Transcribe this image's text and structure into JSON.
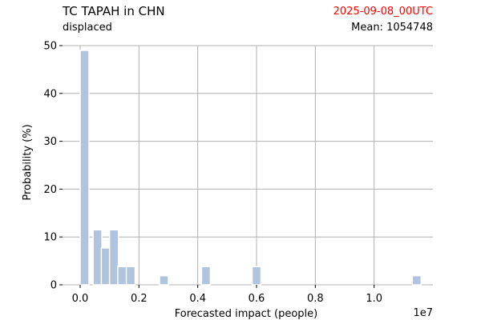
{
  "header": {
    "title": "TC TAPAH in CHN",
    "subtitle": "displaced",
    "date": "2025-09-08_00UTC",
    "mean_label": "Mean:",
    "mean_value": "1054748"
  },
  "colors": {
    "bar": "#b0c4de",
    "grid": "#b0b0b0",
    "date": "#ff0000"
  },
  "chart_data": {
    "type": "bar",
    "title": "TC TAPAH in CHN",
    "xlabel": "Forecasted impact (people)",
    "ylabel": "Probability (%)",
    "x_offset_label": "1e7",
    "xlim": [
      -0.06,
      1.2
    ],
    "ylim": [
      0,
      50
    ],
    "grid": true,
    "bin_width": 0.03,
    "x_ticks": [
      {
        "value": 0.0,
        "label": "0.0"
      },
      {
        "value": 0.2,
        "label": "0.2"
      },
      {
        "value": 0.4,
        "label": "0.4"
      },
      {
        "value": 0.6,
        "label": "0.6"
      },
      {
        "value": 0.8,
        "label": "0.8"
      },
      {
        "value": 1.0,
        "label": "1.0"
      }
    ],
    "y_ticks": [
      {
        "value": 0,
        "label": "0"
      },
      {
        "value": 10,
        "label": "10"
      },
      {
        "value": 20,
        "label": "20"
      },
      {
        "value": 30,
        "label": "30"
      },
      {
        "value": 40,
        "label": "40"
      },
      {
        "value": 50,
        "label": "50"
      }
    ],
    "bins": [
      {
        "x": 0.0,
        "value": 49.0
      },
      {
        "x": 0.044,
        "value": 11.5
      },
      {
        "x": 0.072,
        "value": 7.7
      },
      {
        "x": 0.1,
        "value": 11.5
      },
      {
        "x": 0.128,
        "value": 3.8
      },
      {
        "x": 0.157,
        "value": 3.8
      },
      {
        "x": 0.27,
        "value": 1.9
      },
      {
        "x": 0.413,
        "value": 3.8
      },
      {
        "x": 0.585,
        "value": 3.8
      },
      {
        "x": 1.13,
        "value": 1.9
      }
    ]
  }
}
